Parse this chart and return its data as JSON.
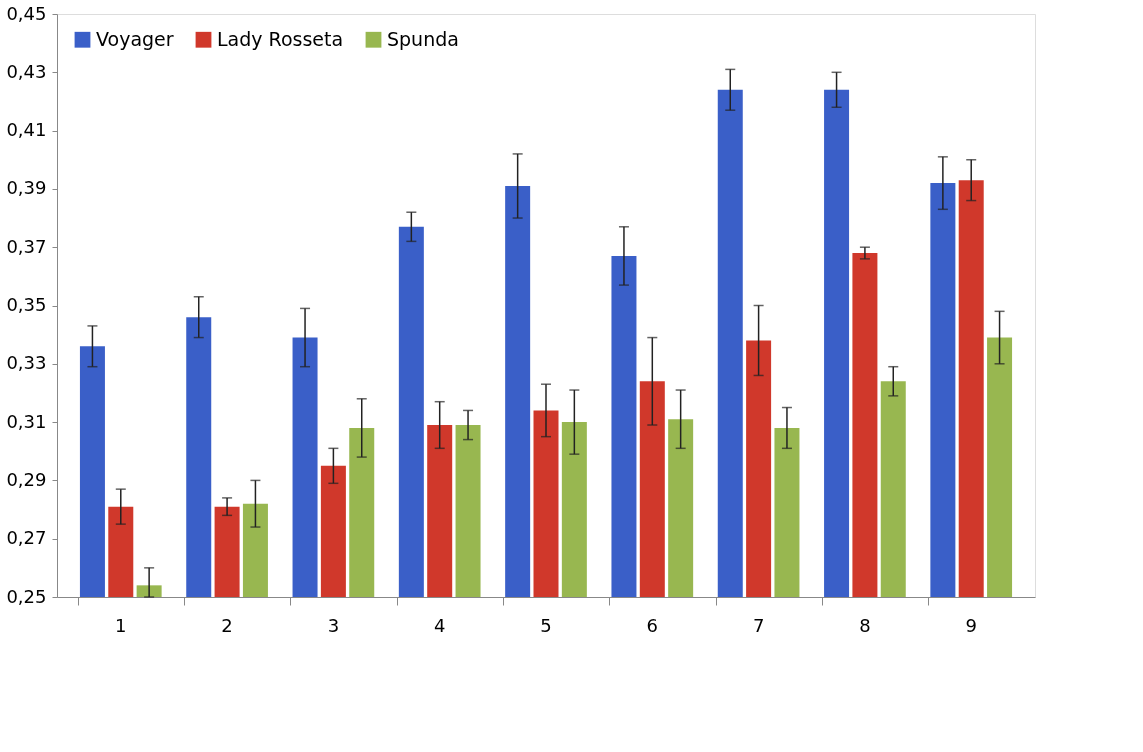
{
  "chart_data": {
    "type": "bar",
    "categories": [
      "1",
      "2",
      "3",
      "4",
      "5",
      "6",
      "7",
      "8",
      "9"
    ],
    "series": [
      {
        "name": "Voyager",
        "color": "#3a5fc8",
        "values": [
          0.336,
          0.346,
          0.339,
          0.377,
          0.391,
          0.367,
          0.424,
          0.424,
          0.392
        ],
        "errors": [
          0.007,
          0.007,
          0.01,
          0.005,
          0.011,
          0.01,
          0.007,
          0.006,
          0.009
        ]
      },
      {
        "name": "Lady Rosseta",
        "color": "#d0382b",
        "values": [
          0.281,
          0.281,
          0.295,
          0.309,
          0.314,
          0.324,
          0.338,
          0.368,
          0.393
        ],
        "errors": [
          0.006,
          0.003,
          0.006,
          0.008,
          0.009,
          0.015,
          0.012,
          0.002,
          0.007
        ]
      },
      {
        "name": "Spunda",
        "color": "#98b750",
        "values": [
          0.254,
          0.282,
          0.308,
          0.309,
          0.31,
          0.311,
          0.308,
          0.324,
          0.339
        ],
        "errors": [
          [
            0.25,
            0.26
          ],
          0.008,
          0.01,
          0.005,
          0.011,
          0.01,
          0.007,
          0.005,
          0.009
        ]
      }
    ],
    "ylim": [
      0.25,
      0.45
    ],
    "yticks": [
      {
        "value": 0.25,
        "label": "0,25"
      },
      {
        "value": 0.27,
        "label": "0,27"
      },
      {
        "value": 0.29,
        "label": "0,29"
      },
      {
        "value": 0.31,
        "label": "0,31"
      },
      {
        "value": 0.33,
        "label": "0,33"
      },
      {
        "value": 0.35,
        "label": "0,35"
      },
      {
        "value": 0.37,
        "label": "0,37"
      },
      {
        "value": 0.39,
        "label": "0,39"
      },
      {
        "value": 0.41,
        "label": "0,41"
      },
      {
        "value": 0.43,
        "label": "0,43"
      },
      {
        "value": 0.45,
        "label": "0,45"
      }
    ],
    "grid": false,
    "legend": "top left"
  }
}
